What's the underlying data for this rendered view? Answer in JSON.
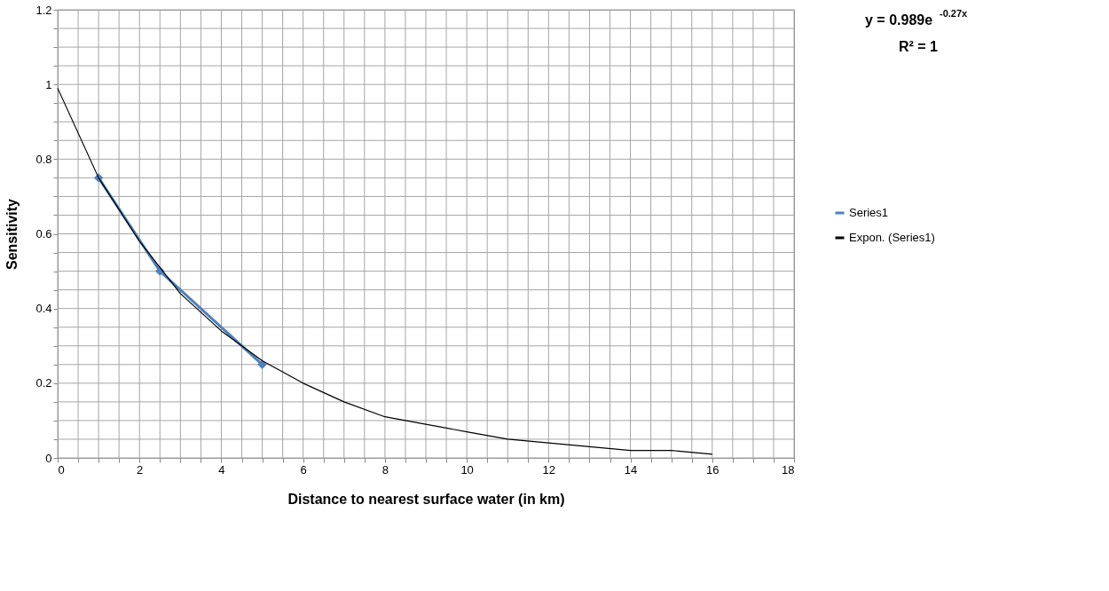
{
  "chart_data": {
    "type": "line",
    "xlabel": "Distance to nearest surface water (in km)",
    "ylabel": "Sensitivity",
    "xlim": [
      0,
      18
    ],
    "ylim": [
      0,
      1.2
    ],
    "xticks": [
      0,
      {
        "value": 0.5,
        "label": null
      },
      {
        "value": 1,
        "label": null
      },
      {
        "value": 1.5,
        "label": null
      },
      2,
      {
        "value": 2.5,
        "label": null
      },
      {
        "value": 3,
        "label": null
      },
      {
        "value": 3.5,
        "label": null
      },
      4,
      {
        "value": 4.5,
        "label": null
      },
      {
        "value": 5,
        "label": null
      },
      {
        "value": 5.5,
        "label": null
      },
      6,
      {
        "value": 6.5,
        "label": null
      },
      {
        "value": 7,
        "label": null
      },
      {
        "value": 7.5,
        "label": null
      },
      8,
      {
        "value": 8.5,
        "label": null
      },
      {
        "value": 9,
        "label": null
      },
      {
        "value": 9.5,
        "label": null
      },
      10,
      {
        "value": 10.5,
        "label": null
      },
      {
        "value": 11,
        "label": null
      },
      {
        "value": 11.5,
        "label": null
      },
      12,
      {
        "value": 12.5,
        "label": null
      },
      {
        "value": 13,
        "label": null
      },
      {
        "value": 13.5,
        "label": null
      },
      14,
      {
        "value": 14.5,
        "label": null
      },
      {
        "value": 15,
        "label": null
      },
      {
        "value": 15.5,
        "label": null
      },
      16,
      {
        "value": 16.5,
        "label": null
      },
      {
        "value": 17,
        "label": null
      },
      {
        "value": 17.5,
        "label": null
      },
      18
    ],
    "yticks": [
      0,
      {
        "value": 0.05,
        "label": null
      },
      {
        "value": 0.1,
        "label": null
      },
      {
        "value": 0.15,
        "label": null
      },
      0.2,
      {
        "value": 0.25,
        "label": null
      },
      {
        "value": 0.3,
        "label": null
      },
      {
        "value": 0.35,
        "label": null
      },
      0.4,
      {
        "value": 0.45,
        "label": null
      },
      {
        "value": 0.5,
        "label": null
      },
      {
        "value": 0.55,
        "label": null
      },
      0.6,
      {
        "value": 0.65,
        "label": null
      },
      {
        "value": 0.7,
        "label": null
      },
      {
        "value": 0.75,
        "label": null
      },
      0.8,
      {
        "value": 0.85,
        "label": null
      },
      {
        "value": 0.9,
        "label": null
      },
      {
        "value": 0.95,
        "label": null
      },
      1,
      {
        "value": 1.05,
        "label": null
      },
      {
        "value": 1.1,
        "label": null
      },
      {
        "value": 1.15,
        "label": null
      },
      1.2
    ],
    "grid": true,
    "legend": "right",
    "annotations": [
      "y = 0.989e$^{-0.27x}$",
      "R² = 1"
    ],
    "series": [
      {
        "name": "Series1",
        "color": "#4f81bd",
        "marker": "diamond",
        "x": [
          1,
          2.5,
          5
        ],
        "values": [
          0.75,
          0.5,
          0.25
        ]
      },
      {
        "name": "Expon. (Series1)",
        "color": "#000000",
        "marker": "none",
        "x": [
          0,
          1,
          2,
          3,
          4,
          5,
          6,
          7,
          8,
          9,
          10,
          11,
          12,
          13,
          14,
          15,
          16
        ],
        "values": [
          0.99,
          0.75,
          0.58,
          0.44,
          0.34,
          0.26,
          0.2,
          0.15,
          0.11,
          0.09,
          0.07,
          0.05,
          0.04,
          0.03,
          0.02,
          0.02,
          0.01
        ]
      }
    ]
  }
}
